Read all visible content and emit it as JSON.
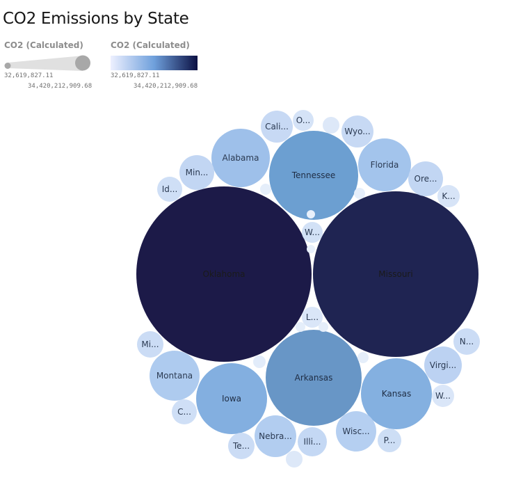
{
  "chart_data": {
    "type": "bubble",
    "title": "CO2 Emissions by State",
    "legend": {
      "size": {
        "title": "CO2 (Calculated)",
        "min_label": "32,619,827.11",
        "max_label": "34,420,212,909.68"
      },
      "color": {
        "title": "CO2 (Calculated)",
        "min_label": "32,619,827.11",
        "max_label": "34,420,212,909.68",
        "colors": [
          "#edf0ff",
          "#6fa0dc",
          "#0b1043"
        ]
      }
    },
    "bubbles": [
      {
        "state": "Oklahoma",
        "label": "Oklahoma",
        "value": 34420212909.68,
        "color": "#1c1a48",
        "text_color": "#1a1a1a"
      },
      {
        "state": "Missouri",
        "label": "Missouri",
        "value": 31000000000,
        "color": "#1f2452",
        "text_color": "#1a1a1a"
      },
      {
        "state": "Arkansas",
        "label": "Arkansas",
        "value": 10500000000,
        "color": "#6896c6",
        "text_color": "#1f2d44"
      },
      {
        "state": "Tennessee",
        "label": "Tennessee",
        "value": 9200000000,
        "color": "#6c9fd1",
        "text_color": "#1f2d44"
      },
      {
        "state": "Kansas",
        "label": "Kansas",
        "value": 6200000000,
        "color": "#84b0e0",
        "text_color": "#1f2d44"
      },
      {
        "state": "Iowa",
        "label": "Iowa",
        "value": 5900000000,
        "color": "#83afe0",
        "text_color": "#1f2d44"
      },
      {
        "state": "Alabama",
        "label": "Alabama",
        "value": 3900000000,
        "color": "#9ec0ea",
        "text_color": "#2b3a52"
      },
      {
        "state": "Florida",
        "label": "Florida",
        "value": 3200000000,
        "color": "#a3c4ec",
        "text_color": "#2b3a52"
      },
      {
        "state": "Montana",
        "label": "Montana",
        "value": 2700000000,
        "color": "#aecbef",
        "text_color": "#2b3a52"
      },
      {
        "state": "Nebraska",
        "label": "Nebra...",
        "value": 2000000000,
        "color": "#b2cdf0",
        "text_color": "#2b3a52"
      },
      {
        "state": "Wisconsin",
        "label": "Wisc...",
        "value": 1800000000,
        "color": "#b5cff1",
        "text_color": "#2b3a52"
      },
      {
        "state": "Virginia",
        "label": "Virgi...",
        "value": 1500000000,
        "color": "#bcd2f2",
        "text_color": "#2b3a52"
      },
      {
        "state": "Oregon",
        "label": "Ore...",
        "value": 1300000000,
        "color": "#c2d6f3",
        "text_color": "#2b3a52"
      },
      {
        "state": "Minnesota",
        "label": "Min...",
        "value": 1300000000,
        "color": "#c2d6f3",
        "text_color": "#2b3a52"
      },
      {
        "state": "Illinois",
        "label": "Illi...",
        "value": 1000000000,
        "color": "#c4d8f4",
        "text_color": "#2b3a52"
      },
      {
        "state": "California",
        "label": "Cali...",
        "value": 1000000000,
        "color": "#c7d9f4",
        "text_color": "#2b3a52"
      },
      {
        "state": "Wyoming",
        "label": "Wyo...",
        "value": 1000000000,
        "color": "#c7d9f4",
        "text_color": "#2b3a52"
      },
      {
        "state": "Michigan",
        "label": "Mi...",
        "value": 720000000,
        "color": "#cbdcf5",
        "text_color": "#2b3a52"
      },
      {
        "state": "Texas",
        "label": "Te...",
        "value": 720000000,
        "color": "#cbdcf5",
        "text_color": "#2b3a52"
      },
      {
        "state": "Pennsylvania",
        "label": "P...",
        "value": 650000000,
        "color": "#cddef5",
        "text_color": "#2b3a52"
      },
      {
        "state": "North Dakota",
        "label": "N...",
        "value": 720000000,
        "color": "#cbdcf5",
        "text_color": "#2b3a52"
      },
      {
        "state": "Idaho",
        "label": "Id...",
        "value": 600000000,
        "color": "#cfdff6",
        "text_color": "#2b3a52"
      },
      {
        "state": "Colorado",
        "label": "C...",
        "value": 600000000,
        "color": "#cfdff6",
        "text_color": "#2b3a52"
      },
      {
        "state": "West Virginia",
        "label": "W...",
        "value": 520000000,
        "color": "#d2e1f6",
        "text_color": "#2b3a52"
      },
      {
        "state": "Ohio",
        "label": "O...",
        "value": 470000000,
        "color": "#d5e3f7",
        "text_color": "#2b3a52"
      },
      {
        "state": "Kentucky",
        "label": "K...",
        "value": 420000000,
        "color": "#d7e4f7",
        "text_color": "#2b3a52"
      },
      {
        "state": "Washington",
        "label": "W...",
        "value": 300000000,
        "color": "#dae6f8",
        "text_color": "#2b3a52"
      },
      {
        "state": "Louisiana",
        "label": "L...",
        "value": 300000000,
        "color": "#dae6f8",
        "text_color": "#2b3a52"
      },
      {
        "state": "",
        "label": "",
        "value": 280000000,
        "color": "#dde8f8",
        "text_color": "#2b3a52"
      },
      {
        "state": "",
        "label": "",
        "value": 250000000,
        "color": "#dde8f8",
        "text_color": "#2b3a52"
      },
      {
        "state": "",
        "label": "",
        "value": 150000000,
        "color": "#e2ecfa",
        "text_color": "#2b3a52"
      },
      {
        "state": "",
        "label": "",
        "value": 80000000,
        "color": "#e5eefa",
        "text_color": "#2b3a52"
      },
      {
        "state": "",
        "label": "",
        "value": 80000000,
        "color": "#e5eefa",
        "text_color": "#2b3a52"
      },
      {
        "state": "",
        "label": "",
        "value": 80000000,
        "color": "#e5eefa",
        "text_color": "#2b3a52"
      },
      {
        "state": "",
        "label": "",
        "value": 80000000,
        "color": "#e5eefa",
        "text_color": "#2b3a52"
      },
      {
        "state": "",
        "label": "",
        "value": 80000000,
        "color": "#e5eefa",
        "text_color": "#2b3a52"
      },
      {
        "state": "",
        "label": "",
        "value": 60000000,
        "color": "#e8f0fb",
        "text_color": "#2b3a52"
      },
      {
        "state": "",
        "label": "",
        "value": 60000000,
        "color": "#e8f0fb",
        "text_color": "#2b3a52"
      }
    ]
  }
}
